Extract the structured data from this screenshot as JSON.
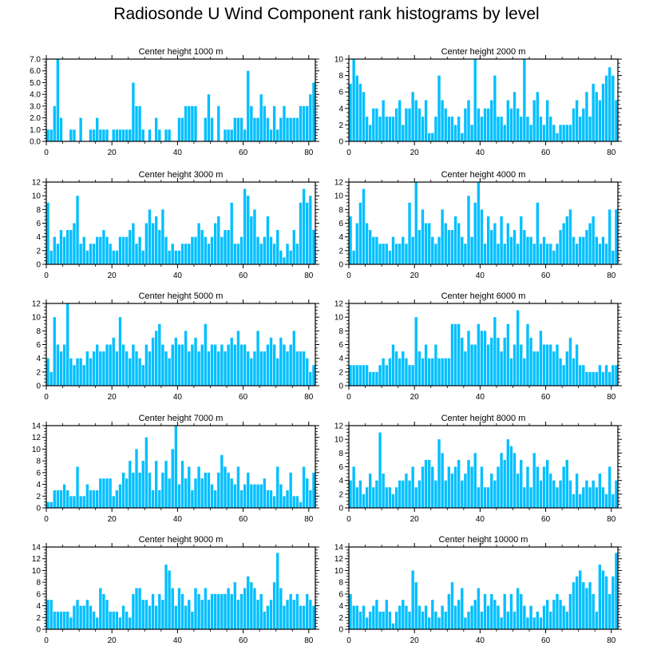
{
  "title": "Radiosonde U Wind Component rank histograms by level",
  "bar_color": "#00BFFF",
  "chart_data": [
    {
      "type": "bar",
      "title": "Center height 1000 m",
      "xlabel": "",
      "ylabel": "",
      "xlim": [
        0,
        82
      ],
      "ylim": [
        0,
        7
      ],
      "yticks": [
        "0.0",
        "1.0",
        "2.0",
        "3.0",
        "4.0",
        "5.0",
        "6.0",
        "7.0"
      ],
      "xticks": [
        "0",
        "20",
        "40",
        "60",
        "80"
      ],
      "values": [
        1,
        1,
        3,
        7,
        2,
        0,
        0,
        1,
        1,
        0,
        2,
        0,
        0,
        1,
        1,
        2,
        1,
        1,
        1,
        0,
        1,
        1,
        1,
        1,
        1,
        1,
        5,
        3,
        3,
        1,
        0,
        1,
        0,
        2,
        1,
        0,
        1,
        1,
        0,
        0,
        2,
        2,
        3,
        3,
        3,
        3,
        0,
        0,
        2,
        4,
        2,
        0,
        3,
        0,
        1,
        1,
        1,
        2,
        2,
        2,
        1,
        6,
        3,
        2,
        2,
        4,
        3,
        2,
        1,
        3,
        1,
        2,
        3,
        2,
        2,
        2,
        2,
        3,
        3,
        3,
        4,
        5
      ]
    },
    {
      "type": "bar",
      "title": "Center height 2000 m",
      "xlabel": "",
      "ylabel": "",
      "xlim": [
        0,
        82
      ],
      "ylim": [
        0,
        10
      ],
      "yticks": [
        "0",
        "2",
        "4",
        "6",
        "8",
        "10"
      ],
      "xticks": [
        "0",
        "20",
        "40",
        "60",
        "80"
      ],
      "values": [
        7,
        10,
        8,
        7,
        6,
        3,
        2,
        4,
        4,
        3,
        5,
        3,
        3,
        3,
        4,
        5,
        2,
        4,
        4,
        6,
        5,
        4,
        3,
        5,
        1,
        1,
        3,
        8,
        5,
        4,
        3,
        3,
        2,
        3,
        1,
        4,
        5,
        2,
        10,
        4,
        3,
        4,
        4,
        5,
        8,
        3,
        3,
        2,
        5,
        4,
        6,
        4,
        3,
        10,
        3,
        2,
        5,
        6,
        3,
        2,
        5,
        3,
        2,
        1,
        2,
        2,
        2,
        2,
        4,
        5,
        3,
        4,
        6,
        3,
        7,
        6,
        5,
        7,
        8,
        9,
        8,
        5
      ]
    },
    {
      "type": "bar",
      "title": "Center height 3000 m",
      "xlabel": "",
      "ylabel": "",
      "xlim": [
        0,
        82
      ],
      "ylim": [
        0,
        12
      ],
      "yticks": [
        "0",
        "2",
        "4",
        "6",
        "8",
        "10",
        "12"
      ],
      "xticks": [
        "0",
        "20",
        "40",
        "60",
        "80"
      ],
      "values": [
        9,
        2,
        4,
        3,
        5,
        4,
        5,
        5,
        6,
        10,
        3,
        4,
        2,
        3,
        3,
        4,
        4,
        5,
        4,
        3,
        2,
        2,
        4,
        4,
        4,
        5,
        6,
        3,
        4,
        2,
        6,
        8,
        6,
        7,
        5,
        8,
        4,
        2,
        3,
        2,
        2,
        3,
        3,
        3,
        4,
        4,
        6,
        5,
        4,
        3,
        4,
        6,
        7,
        4,
        5,
        5,
        9,
        3,
        3,
        4,
        11,
        10,
        7,
        8,
        4,
        3,
        4,
        7,
        4,
        3,
        5,
        2,
        1,
        3,
        2,
        5,
        3,
        9,
        11,
        9,
        10,
        5
      ]
    },
    {
      "type": "bar",
      "title": "Center height 4000 m",
      "xlabel": "",
      "ylabel": "",
      "xlim": [
        0,
        82
      ],
      "ylim": [
        0,
        12
      ],
      "yticks": [
        "0",
        "2",
        "4",
        "6",
        "8",
        "10",
        "12"
      ],
      "xticks": [
        "0",
        "20",
        "40",
        "60",
        "80"
      ],
      "values": [
        7,
        2,
        6,
        9,
        11,
        6,
        5,
        4,
        4,
        3,
        3,
        3,
        2,
        4,
        3,
        3,
        4,
        3,
        9,
        4,
        12,
        5,
        8,
        6,
        6,
        4,
        3,
        4,
        8,
        6,
        5,
        5,
        7,
        6,
        4,
        3,
        10,
        4,
        9,
        12,
        8,
        3,
        7,
        5,
        6,
        3,
        7,
        3,
        6,
        4,
        5,
        3,
        7,
        5,
        4,
        4,
        3,
        9,
        3,
        4,
        3,
        3,
        2,
        3,
        5,
        6,
        7,
        8,
        4,
        3,
        4,
        4,
        5,
        6,
        7,
        4,
        3,
        4,
        3,
        8,
        2,
        8
      ]
    },
    {
      "type": "bar",
      "title": "Center height 5000 m",
      "xlabel": "",
      "ylabel": "",
      "xlim": [
        0,
        82
      ],
      "ylim": [
        0,
        12
      ],
      "yticks": [
        "0",
        "2",
        "4",
        "6",
        "8",
        "10",
        "12"
      ],
      "xticks": [
        "0",
        "20",
        "40",
        "60",
        "80"
      ],
      "values": [
        4,
        2,
        10,
        6,
        5,
        6,
        12,
        4,
        3,
        4,
        4,
        3,
        5,
        4,
        5,
        6,
        5,
        5,
        6,
        6,
        7,
        5,
        10,
        6,
        5,
        4,
        6,
        5,
        4,
        3,
        6,
        5,
        7,
        8,
        9,
        6,
        5,
        4,
        6,
        7,
        6,
        6,
        8,
        5,
        6,
        7,
        5,
        6,
        9,
        5,
        6,
        6,
        5,
        6,
        5,
        6,
        7,
        6,
        8,
        6,
        6,
        5,
        4,
        5,
        8,
        5,
        5,
        6,
        7,
        6,
        4,
        7,
        6,
        5,
        6,
        8,
        5,
        5,
        5,
        4,
        2,
        3
      ]
    },
    {
      "type": "bar",
      "title": "Center height 6000 m",
      "xlabel": "",
      "ylabel": "",
      "xlim": [
        0,
        82
      ],
      "ylim": [
        0,
        12
      ],
      "yticks": [
        "0",
        "2",
        "4",
        "6",
        "8",
        "10",
        "12"
      ],
      "xticks": [
        "0",
        "20",
        "40",
        "60",
        "80"
      ],
      "values": [
        3,
        3,
        3,
        3,
        3,
        3,
        2,
        2,
        2,
        3,
        4,
        3,
        4,
        6,
        5,
        4,
        5,
        4,
        3,
        3,
        10,
        5,
        4,
        6,
        4,
        4,
        6,
        4,
        4,
        4,
        4,
        9,
        9,
        9,
        7,
        5,
        8,
        6,
        6,
        9,
        8,
        8,
        6,
        7,
        10,
        7,
        5,
        7,
        9,
        4,
        6,
        11,
        6,
        4,
        9,
        7,
        5,
        5,
        8,
        6,
        6,
        6,
        5,
        6,
        4,
        3,
        5,
        7,
        4,
        6,
        3,
        3,
        2,
        2,
        2,
        2,
        3,
        2,
        3,
        2,
        3,
        3
      ]
    },
    {
      "type": "bar",
      "title": "Center height 7000 m",
      "xlabel": "",
      "ylabel": "",
      "xlim": [
        0,
        82
      ],
      "ylim": [
        0,
        14
      ],
      "yticks": [
        "0",
        "2",
        "4",
        "6",
        "8",
        "10",
        "12",
        "14"
      ],
      "xticks": [
        "0",
        "20",
        "40",
        "60",
        "80"
      ],
      "values": [
        1,
        1,
        3,
        3,
        3,
        4,
        3,
        2,
        2,
        7,
        2,
        2,
        4,
        3,
        3,
        3,
        5,
        5,
        5,
        5,
        2,
        3,
        4,
        6,
        5,
        8,
        6,
        10,
        6,
        8,
        12,
        6,
        3,
        8,
        3,
        6,
        8,
        5,
        10,
        14,
        4,
        8,
        5,
        7,
        3,
        5,
        7,
        5,
        6,
        6,
        4,
        3,
        6,
        9,
        7,
        6,
        5,
        4,
        7,
        3,
        4,
        6,
        4,
        4,
        4,
        4,
        5,
        3,
        3,
        2,
        7,
        4,
        2,
        3,
        6,
        2,
        2,
        1,
        7,
        5,
        3,
        6
      ]
    },
    {
      "type": "bar",
      "title": "Center height 8000 m",
      "xlabel": "",
      "ylabel": "",
      "xlim": [
        0,
        82
      ],
      "ylim": [
        0,
        12
      ],
      "yticks": [
        "0",
        "2",
        "4",
        "6",
        "8",
        "10",
        "12"
      ],
      "xticks": [
        "0",
        "20",
        "40",
        "60",
        "80"
      ],
      "values": [
        4,
        6,
        3,
        4,
        2,
        3,
        5,
        3,
        4,
        11,
        5,
        3,
        3,
        2,
        3,
        4,
        4,
        5,
        4,
        6,
        3,
        4,
        6,
        7,
        7,
        6,
        4,
        10,
        8,
        4,
        6,
        5,
        6,
        7,
        4,
        5,
        7,
        6,
        8,
        3,
        6,
        3,
        3,
        5,
        4,
        6,
        8,
        7,
        10,
        9,
        8,
        5,
        7,
        3,
        6,
        3,
        8,
        6,
        4,
        6,
        7,
        5,
        4,
        3,
        4,
        6,
        7,
        4,
        2,
        5,
        2,
        3,
        4,
        3,
        4,
        3,
        5,
        3,
        2,
        6,
        2,
        4
      ]
    },
    {
      "type": "bar",
      "title": "Center height 9000 m",
      "xlabel": "",
      "ylabel": "",
      "xlim": [
        0,
        82
      ],
      "ylim": [
        0,
        14
      ],
      "yticks": [
        "0",
        "2",
        "4",
        "6",
        "8",
        "10",
        "12",
        "14"
      ],
      "xticks": [
        "0",
        "20",
        "40",
        "60",
        "80"
      ],
      "values": [
        5,
        5,
        3,
        3,
        3,
        3,
        3,
        2,
        4,
        5,
        4,
        4,
        5,
        4,
        3,
        2,
        7,
        6,
        5,
        3,
        3,
        3,
        2,
        4,
        3,
        2,
        6,
        7,
        7,
        5,
        5,
        4,
        6,
        4,
        6,
        5,
        11,
        10,
        7,
        4,
        7,
        6,
        4,
        5,
        3,
        7,
        6,
        5,
        7,
        5,
        6,
        6,
        6,
        6,
        6,
        7,
        6,
        8,
        5,
        6,
        7,
        9,
        8,
        7,
        5,
        6,
        3,
        4,
        5,
        8,
        13,
        7,
        4,
        5,
        6,
        5,
        6,
        4,
        4,
        6,
        5,
        4
      ]
    },
    {
      "type": "bar",
      "title": "Center height 10000 m",
      "xlabel": "",
      "ylabel": "",
      "xlim": [
        0,
        82
      ],
      "ylim": [
        0,
        14
      ],
      "yticks": [
        "0",
        "2",
        "4",
        "6",
        "8",
        "10",
        "12",
        "14"
      ],
      "xticks": [
        "0",
        "20",
        "40",
        "60",
        "80"
      ],
      "values": [
        6,
        4,
        4,
        3,
        4,
        2,
        3,
        4,
        5,
        3,
        3,
        5,
        3,
        1,
        3,
        4,
        5,
        4,
        3,
        10,
        8,
        4,
        3,
        4,
        2,
        5,
        3,
        2,
        4,
        3,
        6,
        8,
        4,
        5,
        7,
        2,
        3,
        4,
        5,
        7,
        3,
        6,
        4,
        6,
        5,
        4,
        2,
        6,
        3,
        6,
        3,
        7,
        6,
        4,
        2,
        4,
        2,
        3,
        2,
        4,
        5,
        3,
        5,
        6,
        5,
        4,
        3,
        6,
        8,
        9,
        10,
        8,
        7,
        8,
        6,
        3,
        11,
        10,
        9,
        6,
        9,
        13
      ]
    }
  ]
}
